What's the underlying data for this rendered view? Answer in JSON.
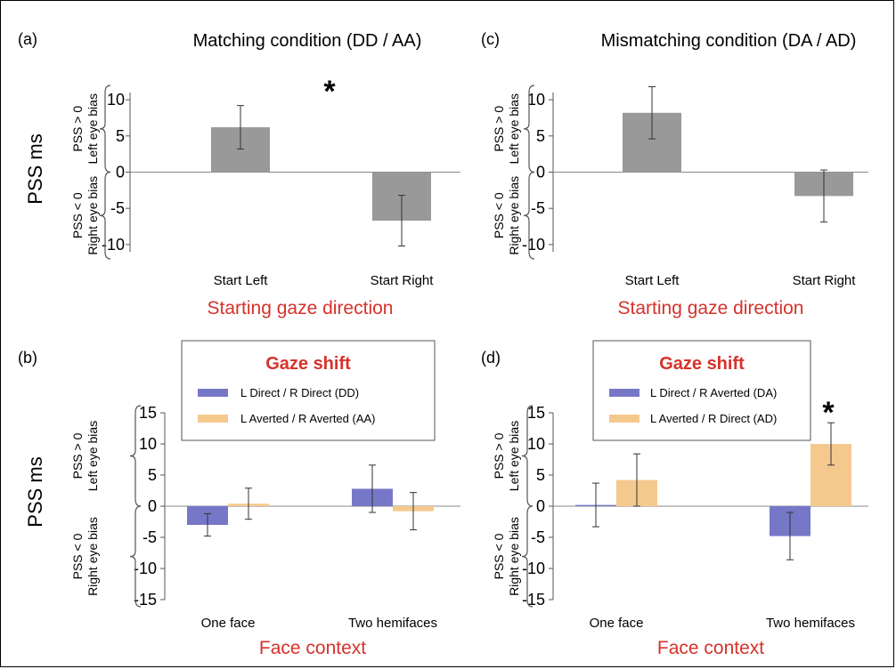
{
  "figure": {
    "ylabel_main": "PSS ms",
    "bias_pos_line1": "PSS > 0",
    "bias_pos_line2": "Left eye bias",
    "bias_neg_line1": "PSS < 0",
    "bias_neg_line2": "Right eye bias"
  },
  "colors": {
    "gray_bar": "#999999",
    "blue_bar": "#7777c8",
    "orange_bar": "#f5c98e",
    "red_text": "#d6322b"
  },
  "chart_data": [
    {
      "id": "a",
      "panel_label": "(a)",
      "type": "bar",
      "title": "Matching condition (DD / AA)",
      "xlabel": "Starting gaze direction",
      "categories": [
        "Start Left",
        "Start Right"
      ],
      "series": [
        {
          "values": [
            6.2,
            -6.7
          ],
          "errors": [
            3.0,
            3.5
          ]
        }
      ],
      "ylim": [
        -11,
        11
      ],
      "yticks": [
        10,
        5,
        0,
        -5,
        -10
      ],
      "annotation": "*"
    },
    {
      "id": "c",
      "panel_label": "(c)",
      "type": "bar",
      "title": "Mismatching condition (DA / AD)",
      "xlabel": "Starting gaze direction",
      "categories": [
        "Start Left",
        "Start Right"
      ],
      "series": [
        {
          "values": [
            8.2,
            -3.3
          ],
          "errors": [
            3.6,
            3.6
          ]
        }
      ],
      "ylim": [
        -11,
        11
      ],
      "yticks": [
        10,
        5,
        0,
        -5,
        -10
      ]
    },
    {
      "id": "b",
      "panel_label": "(b)",
      "type": "bar",
      "xlabel": "Face context",
      "categories": [
        "One face",
        "Two hemifaces"
      ],
      "legend_title": "Gaze shift",
      "series": [
        {
          "name": "L Direct / R Direct (DD)",
          "values": [
            -3.0,
            2.8
          ],
          "errors": [
            1.8,
            3.8
          ]
        },
        {
          "name": "L Averted / R Averted (AA)",
          "values": [
            0.4,
            -0.8
          ],
          "errors": [
            2.5,
            3.0
          ]
        }
      ],
      "ylim": [
        -15,
        15
      ],
      "yticks": [
        15,
        10,
        5,
        0,
        -5,
        -10,
        -15
      ]
    },
    {
      "id": "d",
      "panel_label": "(d)",
      "type": "bar",
      "xlabel": "Face context",
      "categories": [
        "One face",
        "Two hemifaces"
      ],
      "legend_title": "Gaze shift",
      "series": [
        {
          "name": "L Direct / R Averted (DA)",
          "values": [
            0.2,
            -4.8
          ],
          "errors": [
            3.5,
            3.8
          ]
        },
        {
          "name": "L Averted / R Direct (AD)",
          "values": [
            4.2,
            10.0
          ],
          "errors": [
            4.2,
            3.4
          ]
        }
      ],
      "ylim": [
        -15,
        15
      ],
      "yticks": [
        15,
        10,
        5,
        0,
        -5,
        -10,
        -15
      ],
      "annotation": "*"
    }
  ]
}
